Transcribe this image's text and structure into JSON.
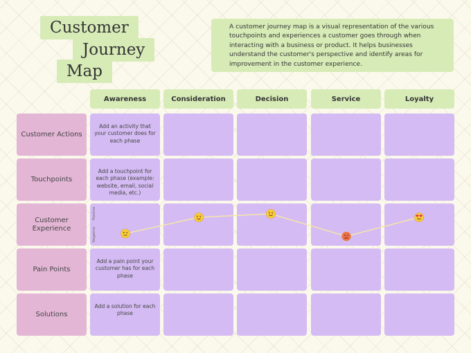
{
  "title": {
    "line1": "Customer",
    "line2": "Journey",
    "line3": "Map"
  },
  "description": "A customer journey map is a visual representation of the various touchpoints and experiences a customer goes through when interacting with a business or product. It helps businesses understand the customer's perspective and identify areas for improvement in the customer experience.",
  "phases": [
    "Awareness",
    "Consideration",
    "Decision",
    "Service",
    "Loyalty"
  ],
  "rows": [
    "Customer Actions",
    "Touchpoints",
    "Customer Experience",
    "Pain Points",
    "Solutions"
  ],
  "cells": {
    "actions": "Add an activity that your customer does for each phase",
    "touchpoints": "Add a touchpoint for each phase (example: website, email, social media, etc.)",
    "pain_points": "Add a pain point your customer has for each phase",
    "solutions": "Add a solution for each phase"
  },
  "experience_axis": {
    "positive": "Positive",
    "negative": "Negative"
  },
  "experience_curve": {
    "levels": [
      0.25,
      0.72,
      0.82,
      0.17,
      0.72
    ],
    "emotions": [
      "neutral",
      "content",
      "content",
      "angry",
      "love"
    ]
  },
  "colors": {
    "title_bg": "#d7ebb7",
    "row_label_bg": "#e3b6d6",
    "cell_bg": "#d4bbf3",
    "line": "#f5e6a8",
    "face_yellow": "#f9cc3b",
    "face_red": "#f26d4f"
  }
}
